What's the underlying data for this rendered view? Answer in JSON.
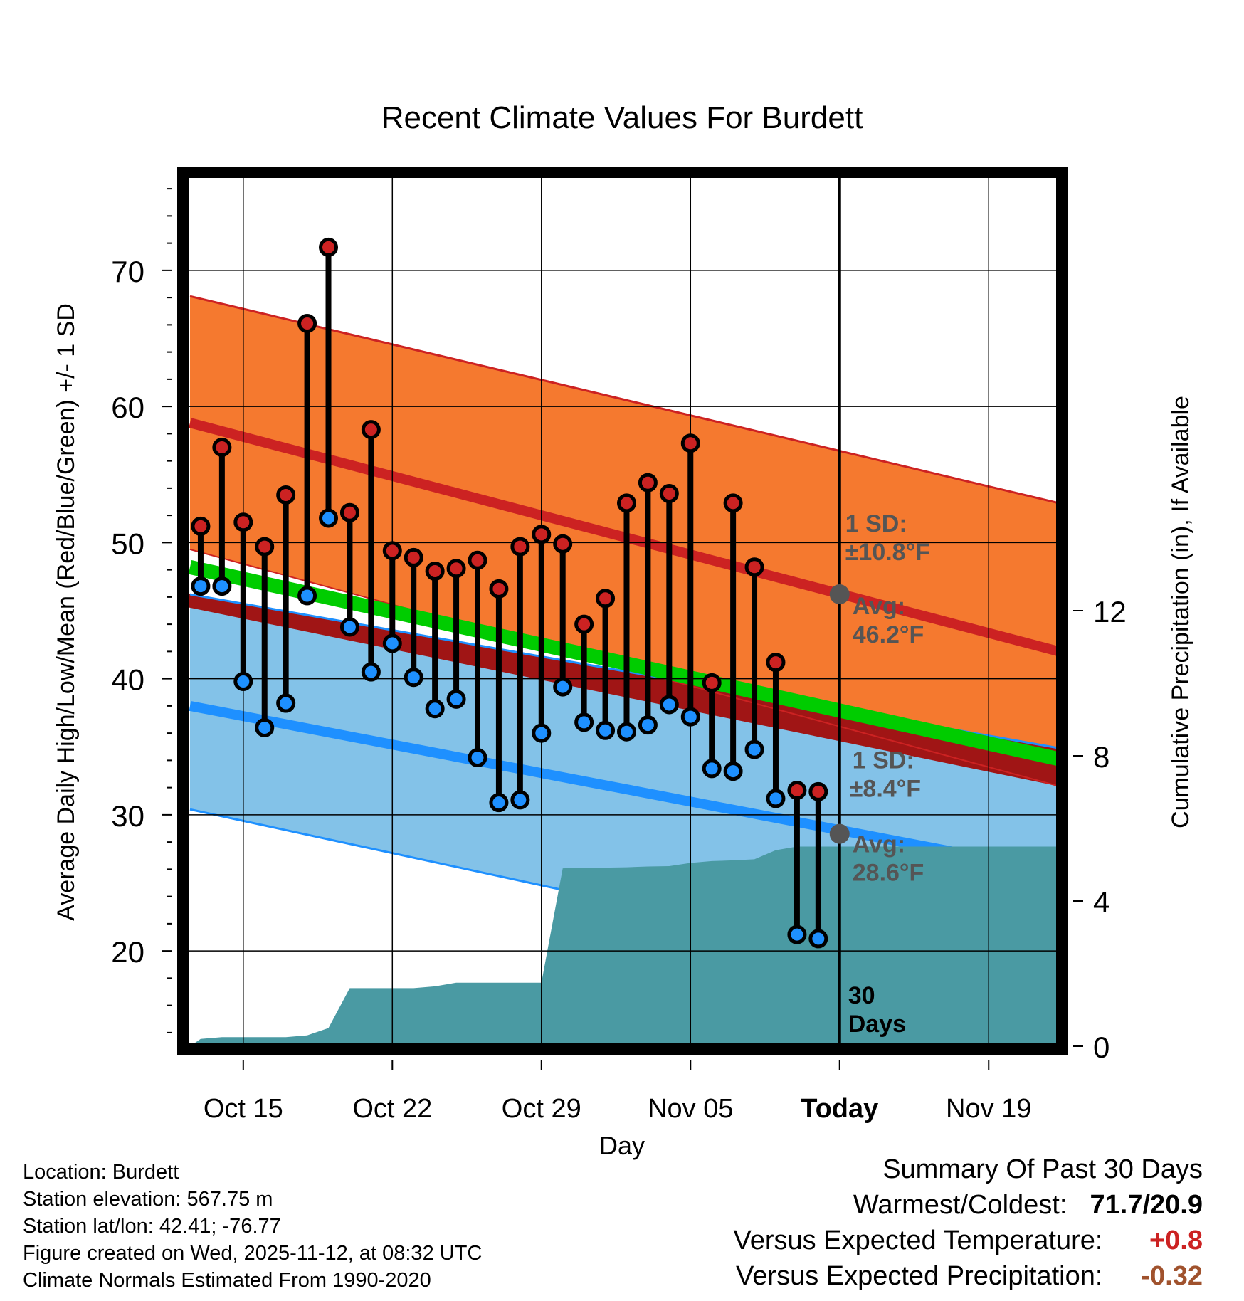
{
  "chart_data": {
    "type": "line",
    "title": "Recent Climate Values For Burdett",
    "xlabel": "Day",
    "ylabel": "Average Daily High/Low/Mean (Red/Blue/Green) +/- 1 SD",
    "y2label": "Cumulative Precipitation (in), If Available",
    "ylim": [
      13,
      77
    ],
    "y2lim": [
      0,
      24
    ],
    "yticks": [
      "20",
      "30",
      "40",
      "50",
      "60",
      "70"
    ],
    "y2ticks": [
      "0",
      "4",
      "8",
      "12"
    ],
    "xlim": [
      -0.7,
      40.3
    ],
    "xticks": [
      {
        "label": "Oct 15",
        "day": 2
      },
      {
        "label": "Oct 22",
        "day": 9
      },
      {
        "label": "Oct 29",
        "day": 16
      },
      {
        "label": "Nov 05",
        "day": 23
      },
      {
        "label": "Today",
        "day": 30
      },
      {
        "label": "Nov 19",
        "day": 37
      }
    ],
    "today_day": 30,
    "today_label": "30 Days",
    "normals": {
      "high_avg": {
        "start": 58.8,
        "end": 42.0
      },
      "high_sd_upper": {
        "start": 68.1,
        "end": 52.9
      },
      "high_sd_lower": {
        "start": 49.5,
        "end": 32.1
      },
      "low_avg": {
        "start": 38.0,
        "end": 25.8
      },
      "low_sd_upper": {
        "start": 46.2,
        "end": 34.9
      },
      "low_sd_lower": {
        "start": 30.4,
        "end": 16.6
      },
      "mean_avg": {
        "start": 48.2,
        "end": 34.1
      }
    },
    "high_annotation": {
      "sd": "1 SD:",
      "sd_value": "±10.8°F",
      "avg": "Avg:",
      "avg_value": "46.2°F"
    },
    "low_annotation": {
      "sd": "1 SD:",
      "sd_value": "±8.4°F",
      "avg": "Avg:",
      "avg_value": "28.6°F"
    },
    "today_high_avg": 46.2,
    "today_low_avg": 28.6,
    "series": [
      {
        "name": "High",
        "color": "#cc2222",
        "values": [
          51.2,
          57.0,
          51.5,
          49.7,
          53.5,
          66.1,
          71.7,
          52.2,
          58.3,
          49.4,
          48.9,
          47.9,
          48.1,
          48.7,
          46.6,
          49.7,
          50.6,
          49.9,
          44.0,
          45.9,
          52.9,
          54.4,
          53.6,
          57.3,
          39.7,
          52.9,
          48.2,
          41.2,
          31.8,
          31.7
        ]
      },
      {
        "name": "Low",
        "color": "#1e90ff",
        "values": [
          46.8,
          46.8,
          39.8,
          36.4,
          38.2,
          46.1,
          51.8,
          43.8,
          40.5,
          42.6,
          40.1,
          37.8,
          38.5,
          34.2,
          30.9,
          31.1,
          36.0,
          39.4,
          36.8,
          36.2,
          36.1,
          36.6,
          38.1,
          37.2,
          33.4,
          33.2,
          34.8,
          31.2,
          21.2,
          20.9
        ]
      }
    ],
    "precip_cumulative": {
      "days": [
        -0.5,
        0,
        1,
        2,
        3,
        4,
        5,
        6,
        7,
        8,
        9,
        10,
        11,
        12,
        13,
        14,
        15,
        16,
        17,
        18,
        19,
        20,
        21,
        22,
        23,
        24,
        25,
        26,
        27,
        28,
        29,
        30,
        40.3
      ],
      "values": [
        0.0,
        0.2,
        0.25,
        0.25,
        0.25,
        0.25,
        0.3,
        0.5,
        1.6,
        1.6,
        1.6,
        1.6,
        1.65,
        1.75,
        1.75,
        1.75,
        1.75,
        1.75,
        4.9,
        4.92,
        4.92,
        4.93,
        4.95,
        4.96,
        5.05,
        5.1,
        5.12,
        5.15,
        5.4,
        5.5,
        5.5,
        5.5,
        5.5
      ]
    }
  },
  "footer": {
    "location": "Location: Burdett",
    "elevation": "Station elevation: 567.75 m",
    "latlon": "Station lat/lon: 42.41; -76.77",
    "created": "Figure created on Wed, 2025-11-12, at 08:32 UTC",
    "normals": "Climate Normals Estimated From 1990-2020"
  },
  "summary": {
    "title": "Summary Of Past 30 Days",
    "warm_label": "Warmest/Coldest:",
    "warm_value": "71.7/20.9",
    "temp_label": "Versus Expected Temperature:",
    "temp_value": "+0.8",
    "precip_label": "Versus Expected Precipitation:",
    "precip_value": "-0.32"
  },
  "colors": {
    "high_band": "#f5792f",
    "low_band": "#83c2e8",
    "high_line": "#cc2222",
    "low_line": "#1e90ff",
    "mean_line": "#00cc00",
    "overlap": "#a01515",
    "precip": "#4a9aa3",
    "annotation": "#555555"
  }
}
